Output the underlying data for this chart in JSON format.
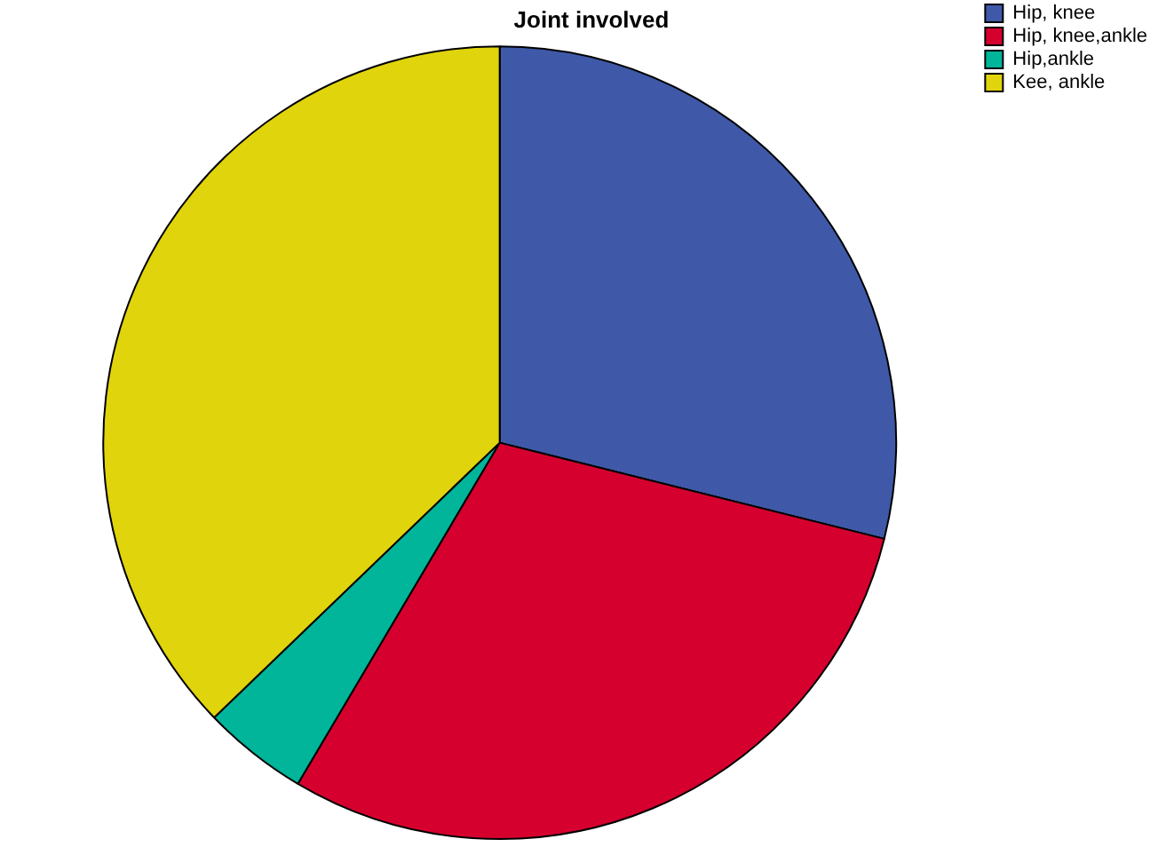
{
  "chart_data": {
    "type": "pie",
    "title": "Joint involved",
    "categories": [
      "Hip, knee",
      "Hip, knee,ankle",
      "Hip,ankle",
      "Kee, ankle"
    ],
    "values": [
      28.9,
      29.6,
      4.3,
      37.2
    ],
    "colors": [
      "#3f59a8",
      "#d6002f",
      "#00b59a",
      "#e0d40c"
    ],
    "legend": "top right"
  }
}
